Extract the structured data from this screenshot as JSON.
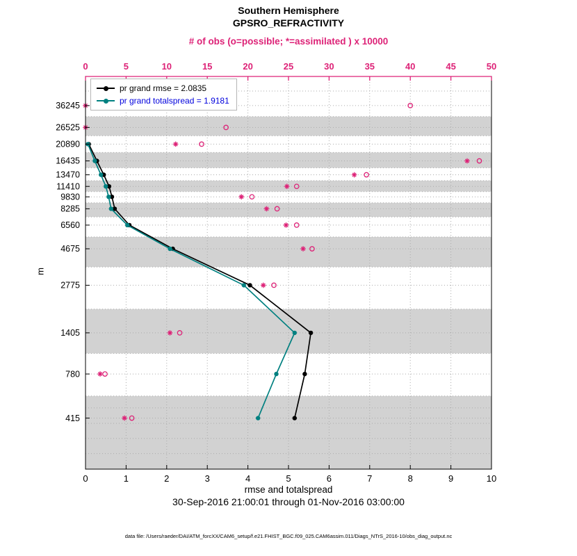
{
  "title": {
    "line1": "Southern Hemisphere",
    "line2": "GPSRO_REFRACTIVITY"
  },
  "axes": {
    "top": {
      "label": "# of obs (o=possible; *=assimilated ) x 10000"
    },
    "bottom": {
      "label": "rmse and totalspread"
    },
    "y": {
      "label": "m"
    }
  },
  "legend": [
    {
      "label": "pr grand rmse = 2.0835",
      "color": "#000000",
      "text_color": "#000000"
    },
    {
      "label": "pr grand totalspread = 1.9181",
      "color": "#008080",
      "text_color": "#0000dd"
    }
  ],
  "subtitle": "30-Sep-2016 21:00:01 through 01-Nov-2016 03:00:00",
  "footer": "data file: /Users/raeder/DAI/ATM_forcXX/CAM6_setup/f.e21.FHIST_BGC.f09_025.CAM6assim.011/Diags_NTrS_2016-10/obs_diag_output.nc",
  "chart_data": {
    "type": "line",
    "title": "Southern Hemisphere GPSRO_REFRACTIVITY",
    "y_scale": "log",
    "ylim": [
      200,
      55000
    ],
    "xlim_bottom": [
      0,
      10
    ],
    "xlim_top": [
      0,
      50
    ],
    "bottom_ticks": [
      0,
      1,
      2,
      3,
      4,
      5,
      6,
      7,
      8,
      9,
      10
    ],
    "top_ticks": [
      0,
      5,
      10,
      15,
      20,
      25,
      30,
      35,
      40,
      45,
      50
    ],
    "levels_m": [
      36245,
      26525,
      20890,
      16435,
      13470,
      11410,
      9830,
      8285,
      6560,
      4675,
      2775,
      1405,
      780,
      415
    ],
    "shaded_levels": [
      26525,
      16435,
      11410,
      8285,
      4675,
      1405,
      415
    ],
    "extra_grid_m": [
      480,
      385,
      310,
      250
    ],
    "series": [
      {
        "name": "pr grand rmse",
        "summary_value": 2.0835,
        "color": "#000000",
        "levels": [
          20890,
          16435,
          13470,
          11410,
          9830,
          8285,
          6560,
          4675,
          2775,
          1405,
          780,
          415
        ],
        "x": [
          0.08,
          0.28,
          0.45,
          0.58,
          0.65,
          0.72,
          1.08,
          2.15,
          4.05,
          5.55,
          5.4,
          5.15
        ]
      },
      {
        "name": "pr grand totalspread",
        "summary_value": 1.9181,
        "color": "#008080",
        "levels": [
          20890,
          16435,
          13470,
          11410,
          9830,
          8285,
          6560,
          4675,
          2775,
          1405,
          780,
          415
        ],
        "x": [
          0.06,
          0.23,
          0.38,
          0.5,
          0.57,
          0.63,
          1.03,
          2.08,
          3.9,
          5.15,
          4.7,
          4.25
        ]
      }
    ],
    "obs_counts_x10000": {
      "levels": [
        36245,
        26525,
        20890,
        16435,
        13470,
        11410,
        9830,
        8285,
        6560,
        4675,
        2775,
        1405,
        780,
        415
      ],
      "possible": [
        40.0,
        17.3,
        14.3,
        48.5,
        34.6,
        26.0,
        20.5,
        23.6,
        26.0,
        27.9,
        23.2,
        11.6,
        2.4,
        5.7
      ],
      "assimilated": [
        0.0,
        0.0,
        11.1,
        47.0,
        33.1,
        24.8,
        19.2,
        22.3,
        24.7,
        26.8,
        21.9,
        10.4,
        1.8,
        4.8
      ]
    },
    "colors": {
      "obs": "#dd2277",
      "band": "#d2d2d2",
      "grid": "#aaaaaa"
    }
  }
}
